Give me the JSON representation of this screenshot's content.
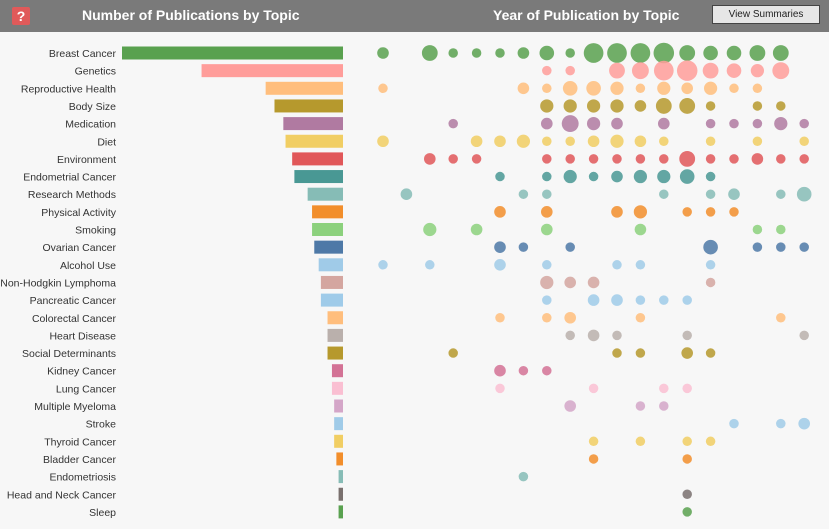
{
  "header": {
    "help_label": "?",
    "left_title": "Number of Publications by Topic",
    "right_title": "Year of Publication by Topic",
    "summaries_button": "View Summaries"
  },
  "chart_data": [
    {
      "type": "bar",
      "title": "Number of Publications by Topic",
      "orientation": "horizontal",
      "categories": [
        "Breast Cancer",
        "Genetics",
        "Reproductive Health",
        "Body Size",
        "Medication",
        "Diet",
        "Environment",
        "Endometrial Cancer",
        "Research Methods",
        "Physical Activity",
        "Smoking",
        "Ovarian Cancer",
        "Alcohol Use",
        "Non-Hodgkin Lymphoma",
        "Pancreatic Cancer",
        "Colorectal Cancer",
        "Heart Disease",
        "Social Determinants",
        "Kidney Cancer",
        "Lung Cancer",
        "Multiple Myeloma",
        "Stroke",
        "Thyroid Cancer",
        "Bladder Cancer",
        "Endometriosis",
        "Head and Neck Cancer",
        "Sleep"
      ],
      "values": [
        100,
        64,
        35,
        31,
        27,
        26,
        23,
        22,
        16,
        14,
        14,
        13,
        11,
        10,
        10,
        7,
        7,
        7,
        5,
        5,
        4,
        4,
        4,
        3,
        2,
        2,
        2
      ],
      "colors": [
        "#59a14f",
        "#ff9d9a",
        "#ffbe7d",
        "#b6992d",
        "#b07aa1",
        "#f1ce63",
        "#e15759",
        "#499894",
        "#86bcb6",
        "#f28e2b",
        "#8cd17d",
        "#4e79a7",
        "#a0cbe8",
        "#d4a6a0",
        "#9fcbe9",
        "#ffbe7d",
        "#bab0ac",
        "#b6992d",
        "#d37295",
        "#fabfd2",
        "#d4a6c8",
        "#a0cbe8",
        "#f1ce63",
        "#f28e2b",
        "#86bcb6",
        "#79706e",
        "#59a14f"
      ]
    },
    {
      "type": "scatter",
      "title": "Year of Publication by Topic",
      "x_axis": "year column index (0-18)",
      "size_meaning": "publication count",
      "series": [
        {
          "name": "Breast Cancer",
          "points": [
            [
              0,
              2
            ],
            [
              2,
              5
            ],
            [
              3,
              1
            ],
            [
              4,
              1
            ],
            [
              5,
              1
            ],
            [
              6,
              2
            ],
            [
              7,
              4
            ],
            [
              8,
              1
            ],
            [
              9,
              9
            ],
            [
              10,
              9
            ],
            [
              11,
              9
            ],
            [
              12,
              10
            ],
            [
              13,
              5
            ],
            [
              14,
              4
            ],
            [
              15,
              4
            ],
            [
              16,
              5
            ],
            [
              17,
              5
            ]
          ]
        },
        {
          "name": "Genetics",
          "points": [
            [
              7,
              1
            ],
            [
              8,
              1
            ],
            [
              10,
              5
            ],
            [
              11,
              6
            ],
            [
              12,
              9
            ],
            [
              13,
              10
            ],
            [
              14,
              5
            ],
            [
              15,
              4
            ],
            [
              16,
              3
            ],
            [
              17,
              6
            ]
          ]
        },
        {
          "name": "Reproductive Health",
          "points": [
            [
              0,
              1
            ],
            [
              6,
              2
            ],
            [
              7,
              1
            ],
            [
              8,
              4
            ],
            [
              9,
              4
            ],
            [
              10,
              3
            ],
            [
              11,
              1
            ],
            [
              12,
              3
            ],
            [
              13,
              2
            ],
            [
              14,
              3
            ],
            [
              15,
              1
            ],
            [
              16,
              1
            ]
          ]
        },
        {
          "name": "Body Size",
          "points": [
            [
              7,
              3
            ],
            [
              8,
              3
            ],
            [
              9,
              3
            ],
            [
              10,
              3
            ],
            [
              11,
              2
            ],
            [
              12,
              5
            ],
            [
              13,
              5
            ],
            [
              14,
              1
            ],
            [
              16,
              1
            ],
            [
              17,
              1
            ]
          ]
        },
        {
          "name": "Medication",
          "points": [
            [
              3,
              1
            ],
            [
              7,
              2
            ],
            [
              8,
              6
            ],
            [
              9,
              3
            ],
            [
              10,
              2
            ],
            [
              12,
              2
            ],
            [
              14,
              1
            ],
            [
              15,
              1
            ],
            [
              16,
              1
            ],
            [
              17,
              3
            ],
            [
              18,
              1
            ]
          ]
        },
        {
          "name": "Diet",
          "points": [
            [
              0,
              2
            ],
            [
              4,
              2
            ],
            [
              5,
              2
            ],
            [
              6,
              3
            ],
            [
              7,
              1
            ],
            [
              8,
              1
            ],
            [
              9,
              2
            ],
            [
              10,
              3
            ],
            [
              11,
              2
            ],
            [
              12,
              1
            ],
            [
              14,
              1
            ],
            [
              16,
              1
            ],
            [
              18,
              1
            ]
          ]
        },
        {
          "name": "Environment",
          "points": [
            [
              2,
              2
            ],
            [
              3,
              1
            ],
            [
              4,
              1
            ],
            [
              7,
              1
            ],
            [
              8,
              1
            ],
            [
              9,
              1
            ],
            [
              10,
              1
            ],
            [
              11,
              1
            ],
            [
              12,
              1
            ],
            [
              13,
              5
            ],
            [
              14,
              1
            ],
            [
              15,
              1
            ],
            [
              16,
              2
            ],
            [
              17,
              1
            ],
            [
              18,
              1
            ]
          ]
        },
        {
          "name": "Endometrial Cancer",
          "points": [
            [
              5,
              1
            ],
            [
              7,
              1
            ],
            [
              8,
              3
            ],
            [
              9,
              1
            ],
            [
              10,
              2
            ],
            [
              11,
              3
            ],
            [
              12,
              3
            ],
            [
              13,
              4
            ],
            [
              14,
              1
            ]
          ]
        },
        {
          "name": "Research Methods",
          "points": [
            [
              1,
              2
            ],
            [
              6,
              1
            ],
            [
              7,
              1
            ],
            [
              12,
              1
            ],
            [
              14,
              1
            ],
            [
              15,
              2
            ],
            [
              17,
              1
            ],
            [
              18,
              4
            ]
          ]
        },
        {
          "name": "Physical Activity",
          "points": [
            [
              5,
              2
            ],
            [
              7,
              2
            ],
            [
              10,
              2
            ],
            [
              11,
              3
            ],
            [
              13,
              1
            ],
            [
              14,
              1
            ],
            [
              15,
              1
            ]
          ]
        },
        {
          "name": "Smoking",
          "points": [
            [
              2,
              3
            ],
            [
              4,
              2
            ],
            [
              7,
              2
            ],
            [
              11,
              2
            ],
            [
              16,
              1
            ],
            [
              17,
              1
            ]
          ]
        },
        {
          "name": "Ovarian Cancer",
          "points": [
            [
              5,
              2
            ],
            [
              6,
              1
            ],
            [
              8,
              1
            ],
            [
              14,
              4
            ],
            [
              16,
              1
            ],
            [
              17,
              1
            ],
            [
              18,
              1
            ]
          ]
        },
        {
          "name": "Alcohol Use",
          "points": [
            [
              0,
              1
            ],
            [
              2,
              1
            ],
            [
              5,
              2
            ],
            [
              7,
              1
            ],
            [
              10,
              1
            ],
            [
              11,
              1
            ],
            [
              14,
              1
            ]
          ]
        },
        {
          "name": "Non-Hodgkin Lymphoma",
          "points": [
            [
              7,
              3
            ],
            [
              8,
              2
            ],
            [
              9,
              2
            ],
            [
              14,
              1
            ]
          ]
        },
        {
          "name": "Pancreatic Cancer",
          "points": [
            [
              7,
              1
            ],
            [
              9,
              2
            ],
            [
              10,
              2
            ],
            [
              11,
              1
            ],
            [
              12,
              1
            ],
            [
              13,
              1
            ]
          ]
        },
        {
          "name": "Colorectal Cancer",
          "points": [
            [
              5,
              1
            ],
            [
              7,
              1
            ],
            [
              8,
              2
            ],
            [
              11,
              1
            ],
            [
              17,
              1
            ]
          ]
        },
        {
          "name": "Heart Disease",
          "points": [
            [
              8,
              1
            ],
            [
              9,
              2
            ],
            [
              10,
              1
            ],
            [
              13,
              1
            ],
            [
              18,
              1
            ]
          ]
        },
        {
          "name": "Social Determinants",
          "points": [
            [
              3,
              1
            ],
            [
              10,
              1
            ],
            [
              11,
              1
            ],
            [
              13,
              2
            ],
            [
              14,
              1
            ]
          ]
        },
        {
          "name": "Kidney Cancer",
          "points": [
            [
              5,
              2
            ],
            [
              6,
              1
            ],
            [
              7,
              1
            ]
          ]
        },
        {
          "name": "Lung Cancer",
          "points": [
            [
              5,
              1
            ],
            [
              9,
              1
            ],
            [
              12,
              1
            ],
            [
              13,
              1
            ]
          ]
        },
        {
          "name": "Multiple Myeloma",
          "points": [
            [
              8,
              2
            ],
            [
              11,
              1
            ],
            [
              12,
              1
            ]
          ]
        },
        {
          "name": "Stroke",
          "points": [
            [
              15,
              1
            ],
            [
              17,
              1
            ],
            [
              18,
              2
            ]
          ]
        },
        {
          "name": "Thyroid Cancer",
          "points": [
            [
              9,
              1
            ],
            [
              11,
              1
            ],
            [
              13,
              1
            ],
            [
              14,
              1
            ]
          ]
        },
        {
          "name": "Bladder Cancer",
          "points": [
            [
              9,
              1
            ],
            [
              13,
              1
            ]
          ]
        },
        {
          "name": "Endometriosis",
          "points": [
            [
              6,
              1
            ]
          ]
        },
        {
          "name": "Head and Neck Cancer",
          "points": [
            [
              13,
              1
            ]
          ]
        },
        {
          "name": "Sleep",
          "points": [
            [
              13,
              1
            ]
          ]
        }
      ]
    }
  ]
}
